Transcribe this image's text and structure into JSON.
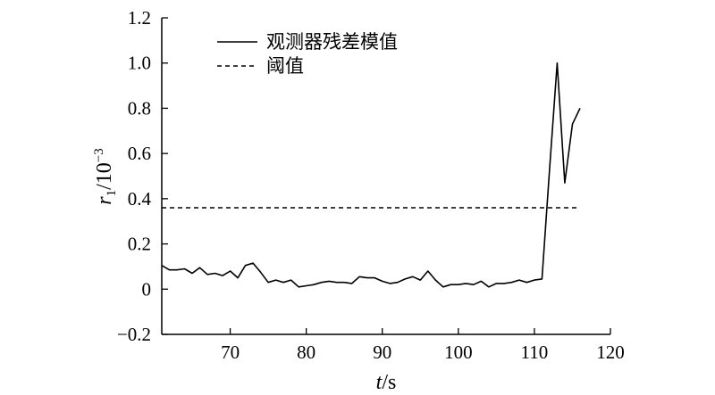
{
  "chart_data": {
    "type": "line",
    "xlabel": {
      "var": "t",
      "unit": "/s"
    },
    "ylabel": {
      "var": "r",
      "sub": "1",
      "unit": "/10",
      "exp": "−3"
    },
    "xlim": [
      61,
      120
    ],
    "ylim": [
      -0.2,
      1.2
    ],
    "xticks": [
      70,
      80,
      90,
      100,
      110,
      120
    ],
    "yticks": [
      -0.2,
      0,
      0.2,
      0.4,
      0.6,
      0.8,
      1.0,
      1.2
    ],
    "ytick_labels": [
      "−0.2",
      "0",
      "0.2",
      "0.4",
      "0.6",
      "0.8",
      "1.0",
      "1.2"
    ],
    "grid": false,
    "legend_position": "top-left",
    "series": [
      {
        "name": "观测器残差模值",
        "style": "solid",
        "color": "#000000",
        "x": [
          61,
          62,
          63,
          64,
          65,
          66,
          67,
          68,
          69,
          70,
          71,
          72,
          73,
          74,
          75,
          76,
          77,
          78,
          79,
          80,
          81,
          82,
          83,
          84,
          85,
          86,
          87,
          88,
          89,
          90,
          91,
          92,
          93,
          94,
          95,
          96,
          97,
          98,
          99,
          100,
          101,
          102,
          103,
          104,
          105,
          106,
          107,
          108,
          109,
          110,
          111,
          112,
          113,
          114,
          115,
          116
        ],
        "y": [
          0.105,
          0.085,
          0.085,
          0.09,
          0.07,
          0.095,
          0.065,
          0.07,
          0.06,
          0.08,
          0.05,
          0.105,
          0.115,
          0.075,
          0.03,
          0.04,
          0.03,
          0.04,
          0.01,
          0.015,
          0.02,
          0.03,
          0.035,
          0.03,
          0.03,
          0.025,
          0.055,
          0.05,
          0.05,
          0.035,
          0.025,
          0.03,
          0.045,
          0.055,
          0.04,
          0.08,
          0.04,
          0.01,
          0.02,
          0.02,
          0.025,
          0.02,
          0.035,
          0.01,
          0.025,
          0.025,
          0.03,
          0.04,
          0.03,
          0.04,
          0.045,
          0.53,
          1.0,
          0.47,
          0.73,
          0.8
        ]
      },
      {
        "name": "阈值",
        "style": "dashed",
        "color": "#000000",
        "x": [
          61,
          116
        ],
        "y": [
          0.36,
          0.36
        ]
      }
    ]
  }
}
